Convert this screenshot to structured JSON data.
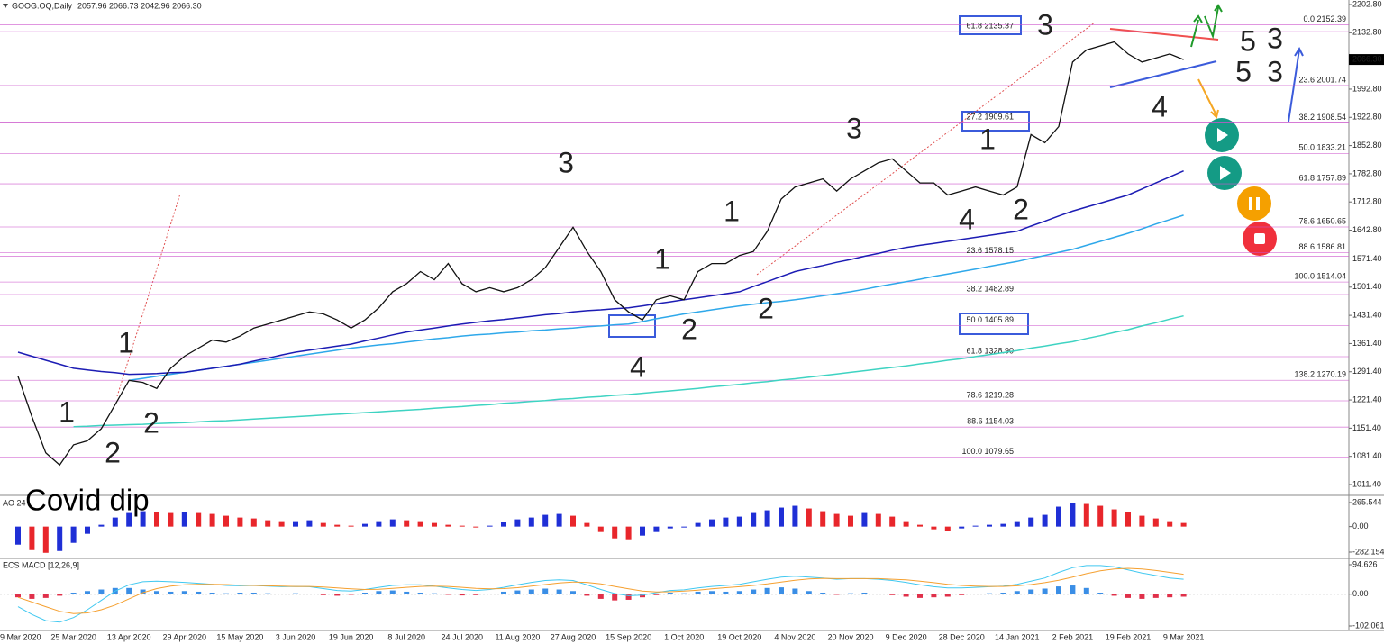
{
  "chart_data": [
    {
      "type": "line",
      "title": "GOOG.OQ,Daily",
      "ohlc": "2057.96 2066.73 2042.96 2066.30",
      "annotation": "Covid dip",
      "categories": [
        "9 Mar 2020",
        null,
        null,
        null,
        "25 Mar 2020",
        null,
        null,
        null,
        "13 Apr 2020",
        null,
        null,
        null,
        "29 Apr 2020",
        null,
        null,
        null,
        "15 May 2020",
        null,
        null,
        null,
        "3 Jun 2020",
        null,
        null,
        null,
        "19 Jun 2020",
        null,
        null,
        null,
        "8 Jul 2020",
        null,
        null,
        null,
        "24 Jul 2020",
        null,
        null,
        null,
        "11 Aug 2020",
        null,
        null,
        null,
        "27 Aug 2020",
        null,
        null,
        null,
        "15 Sep 2020",
        null,
        null,
        null,
        "1 Oct 2020",
        null,
        null,
        null,
        "19 Oct 2020",
        null,
        null,
        null,
        "4 Nov 2020",
        null,
        null,
        null,
        "20 Nov 2020",
        null,
        null,
        null,
        "9 Dec 2020",
        null,
        null,
        null,
        "28 Dec 2020",
        null,
        null,
        null,
        "14 Jan 2021",
        null,
        null,
        null,
        "2 Feb 2021",
        null,
        null,
        null,
        "19 Feb 2021",
        null,
        null,
        null,
        "9 Mar 2021"
      ],
      "series": [
        {
          "color": "#111111",
          "values": [
            1280,
            1180,
            1090,
            1060,
            1110,
            1120,
            1150,
            1210,
            1270,
            1265,
            1250,
            1300,
            1330,
            1350,
            1370,
            1365,
            1380,
            1400,
            1410,
            1420,
            1430,
            1440,
            1435,
            1420,
            1400,
            1420,
            1450,
            1490,
            1510,
            1540,
            1520,
            1560,
            1510,
            1490,
            1500,
            1490,
            1500,
            1520,
            1550,
            1600,
            1650,
            1590,
            1540,
            1470,
            1440,
            1420,
            1470,
            1480,
            1470,
            1540,
            1560,
            1560,
            1580,
            1590,
            1640,
            1720,
            1750,
            1760,
            1770,
            1740,
            1770,
            1790,
            1810,
            1820,
            1790,
            1760,
            1760,
            1730,
            1740,
            1750,
            1740,
            1730,
            1750,
            1880,
            1860,
            1900,
            2060,
            2090,
            2100,
            2110,
            2080,
            2060,
            2070,
            2080,
            2066.3
          ]
        },
        {
          "color": "#1c1cb4",
          "values": [
            1340,
            1330,
            1320,
            1310,
            1300,
            1296,
            1292,
            1289,
            1285,
            1286,
            1287,
            1289,
            1290,
            1295,
            1300,
            1305,
            1310,
            1318,
            1325,
            1333,
            1340,
            1345,
            1350,
            1355,
            1360,
            1368,
            1375,
            1383,
            1390,
            1395,
            1400,
            1405,
            1410,
            1414,
            1418,
            1421,
            1425,
            1429,
            1433,
            1436,
            1440,
            1443,
            1445,
            1448,
            1450,
            1455,
            1460,
            1465,
            1470,
            1475,
            1480,
            1485,
            1490,
            1503,
            1515,
            1528,
            1540,
            1548,
            1555,
            1563,
            1570,
            1578,
            1585,
            1593,
            1600,
            1605,
            1610,
            1615,
            1620,
            1625,
            1630,
            1635,
            1640,
            1653,
            1665,
            1678,
            1690,
            1700,
            1710,
            1720,
            1730,
            1745,
            1760,
            1775,
            1790
          ]
        },
        {
          "color": "#2ea8ea",
          "values": [
            null,
            null,
            null,
            null,
            null,
            null,
            null,
            null,
            1270,
            1275,
            1280,
            1285,
            1290,
            1295,
            1300,
            1305,
            1310,
            1315,
            1320,
            1325,
            1330,
            1335,
            1340,
            1345,
            1350,
            1354,
            1358,
            1361,
            1365,
            1369,
            1373,
            1376,
            1380,
            1383,
            1385,
            1388,
            1390,
            1393,
            1395,
            1398,
            1400,
            1403,
            1405,
            1408,
            1410,
            1416,
            1423,
            1429,
            1435,
            1440,
            1445,
            1450,
            1455,
            1459,
            1463,
            1466,
            1470,
            1475,
            1480,
            1485,
            1490,
            1496,
            1503,
            1509,
            1515,
            1521,
            1528,
            1534,
            1540,
            1546,
            1553,
            1559,
            1565,
            1573,
            1580,
            1588,
            1595,
            1605,
            1615,
            1625,
            1635,
            1646,
            1658,
            1669,
            1680
          ]
        },
        {
          "color": "#3ed3c2",
          "values": [
            null,
            null,
            null,
            null,
            1155,
            1156,
            1158,
            1159,
            1160,
            1161,
            1163,
            1164,
            1165,
            1167,
            1169,
            1170,
            1172,
            1174,
            1176,
            1178,
            1180,
            1182,
            1184,
            1186,
            1188,
            1190,
            1192,
            1194,
            1196,
            1198,
            1201,
            1203,
            1205,
            1208,
            1210,
            1213,
            1215,
            1218,
            1220,
            1223,
            1225,
            1228,
            1230,
            1233,
            1235,
            1238,
            1241,
            1244,
            1247,
            1250,
            1254,
            1257,
            1260,
            1264,
            1267,
            1271,
            1274,
            1278,
            1282,
            1286,
            1290,
            1294,
            1298,
            1302,
            1306,
            1311,
            1315,
            1320,
            1324,
            1329,
            1334,
            1339,
            1344,
            1350,
            1355,
            1361,
            1366,
            1374,
            1381,
            1389,
            1396,
            1405,
            1413,
            1422,
            1430
          ]
        }
      ],
      "ylim": [
        984.6,
        2214.0
      ],
      "yticks": [
        {
          "value": 2202.8,
          "label": "2202.80"
        },
        {
          "value": 2132.8,
          "label": "2132.80"
        },
        {
          "value": 1992.8,
          "label": "1992.80"
        },
        {
          "value": 1922.8,
          "label": "1922.80"
        },
        {
          "value": 1852.8,
          "label": "1852.80"
        },
        {
          "value": 1782.8,
          "label": "1782.80"
        },
        {
          "value": 1712.8,
          "label": "1712.80"
        },
        {
          "value": 1642.8,
          "label": "1642.80"
        },
        {
          "value": 1571.4,
          "label": "1571.40"
        },
        {
          "value": 1501.4,
          "label": "1501.40"
        },
        {
          "value": 1431.4,
          "label": "1431.40"
        },
        {
          "value": 1361.4,
          "label": "1361.40"
        },
        {
          "value": 1291.4,
          "label": "1291.40"
        },
        {
          "value": 1221.4,
          "label": "1221.40"
        },
        {
          "value": 1151.4,
          "label": "1151.40"
        },
        {
          "value": 1081.4,
          "label": "1081.40"
        },
        {
          "value": 1011.4,
          "label": "1011.40"
        }
      ],
      "last_price": {
        "value": 2066.3,
        "label": "2066.30"
      },
      "fib_sets": [
        [
          {
            "value": 2152.39,
            "label": "0.0 2152.39"
          },
          {
            "value": 2001.74,
            "label": "23.6 2001.74"
          },
          {
            "value": 1908.54,
            "label": "38.2 1908.54"
          },
          {
            "value": 1833.21,
            "label": "50.0 1833.21"
          },
          {
            "value": 1757.89,
            "label": "61.8 1757.89"
          },
          {
            "value": 1650.65,
            "label": "78.6 1650.65"
          },
          {
            "value": 1586.81,
            "label": "88.6 1586.81"
          },
          {
            "value": 1514.04,
            "label": "100.0 1514.04"
          },
          {
            "value": 1270.19,
            "label": "138.2 1270.19"
          }
        ],
        [
          {
            "value": 2135.37,
            "label": "61.8 2135.37"
          },
          {
            "value": 1909.61,
            "label": "27.2 1909.61"
          },
          {
            "value": 1578.15,
            "label": "23.6 1578.15"
          },
          {
            "value": 1482.89,
            "label": "38.2 1482.89"
          },
          {
            "value": 1405.89,
            "label": "50.0 1405.89"
          },
          {
            "value": 1328.9,
            "label": "61.8 1328.90"
          },
          {
            "value": 1219.28,
            "label": "78.6 1219.28"
          },
          {
            "value": 1154.03,
            "label": "88.6 1154.03"
          },
          {
            "value": 1079.65,
            "label": "100.0 1079.65"
          }
        ]
      ],
      "fib_color": "#cc55cc",
      "wave_labels": [
        {
          "text": "1",
          "color": "#f2564e"
        },
        {
          "text": "2",
          "color": "#f2564e"
        },
        {
          "text": "1",
          "color": "#5c2d86"
        },
        {
          "text": "2",
          "color": "#5c2d86"
        },
        {
          "text": "3",
          "color": "#5c2d86"
        },
        {
          "text": "4",
          "color": "#5c2d86"
        },
        {
          "text": "1",
          "color": "#f03fb0"
        },
        {
          "text": "2",
          "color": "#f03fb0"
        },
        {
          "text": "1",
          "color": "#b8b8b8"
        },
        {
          "text": "2",
          "color": "#b8b8b8"
        },
        {
          "text": "3",
          "color": "#b8b8b8"
        },
        {
          "text": "4",
          "color": "#b8b8b8"
        },
        {
          "text": "1",
          "color": "#f5a623"
        },
        {
          "text": "2",
          "color": "#f5a623"
        },
        {
          "text": "3",
          "color": "#f5a623"
        },
        {
          "text": "4",
          "color": "#f5a623"
        },
        {
          "text": "5",
          "color": "#5c2d86"
        },
        {
          "text": "3",
          "color": "#f2564e"
        },
        {
          "text": "5",
          "color": "#b8b8b8"
        },
        {
          "text": "3",
          "color": "#f03fb0"
        }
      ]
    },
    {
      "type": "bar",
      "title": "AO 24",
      "up_color": "#1f2fd6",
      "down_color": "#e8262b",
      "values": [
        -200,
        -260,
        -290,
        -270,
        -180,
        -80,
        20,
        100,
        150,
        170,
        160,
        150,
        160,
        150,
        140,
        120,
        100,
        90,
        70,
        60,
        60,
        70,
        40,
        20,
        10,
        30,
        60,
        80,
        70,
        60,
        40,
        20,
        10,
        -10,
        10,
        50,
        80,
        100,
        130,
        140,
        120,
        40,
        -60,
        -130,
        -140,
        -100,
        -60,
        -20,
        -10,
        40,
        80,
        100,
        110,
        150,
        180,
        210,
        230,
        200,
        170,
        140,
        120,
        150,
        140,
        110,
        60,
        20,
        -30,
        -50,
        -20,
        10,
        20,
        30,
        60,
        100,
        130,
        220,
        260,
        250,
        230,
        190,
        160,
        120,
        90,
        60,
        40
      ],
      "ylim": [
        -352,
        325
      ],
      "yticks": [
        265.544,
        {
          "value": 0,
          "label": "0.00"
        },
        -282.154
      ]
    },
    {
      "type": "macd",
      "title": "ECS MACD [12,26,9]",
      "pos_color": "#3a8ee6",
      "neg_color": "#e0304a",
      "values": [
        -10,
        -15,
        -12,
        -5,
        5,
        10,
        15,
        20,
        20,
        15,
        10,
        8,
        10,
        8,
        5,
        3,
        5,
        5,
        3,
        2,
        3,
        2,
        -3,
        -5,
        -2,
        5,
        10,
        12,
        8,
        5,
        3,
        -2,
        -4,
        -3,
        2,
        8,
        12,
        15,
        18,
        15,
        10,
        -5,
        -15,
        -20,
        -18,
        -10,
        -3,
        5,
        3,
        8,
        10,
        8,
        10,
        15,
        20,
        22,
        18,
        10,
        5,
        -2,
        3,
        5,
        2,
        -3,
        -8,
        -12,
        -10,
        -8,
        -3,
        2,
        3,
        5,
        10,
        15,
        18,
        25,
        28,
        20,
        5,
        -5,
        -12,
        -15,
        -12,
        -10,
        -8
      ],
      "series": [
        {
          "color": "#40c8f0",
          "values": [
            -40,
            -65,
            -85,
            -90,
            -75,
            -50,
            -20,
            10,
            30,
            40,
            42,
            40,
            38,
            35,
            32,
            28,
            27,
            28,
            26,
            24,
            25,
            24,
            18,
            12,
            10,
            15,
            22,
            28,
            30,
            30,
            26,
            20,
            15,
            12,
            15,
            22,
            30,
            38,
            44,
            46,
            44,
            30,
            15,
            2,
            -5,
            -3,
            5,
            12,
            14,
            20,
            25,
            28,
            32,
            40,
            48,
            55,
            58,
            55,
            52,
            48,
            50,
            50,
            48,
            44,
            38,
            30,
            24,
            20,
            20,
            22,
            24,
            26,
            32,
            42,
            52,
            70,
            85,
            92,
            92,
            88,
            78,
            68,
            60,
            52,
            48
          ]
        },
        {
          "color": "#f5a030",
          "values": [
            -10,
            -25,
            -40,
            -55,
            -62,
            -60,
            -50,
            -35,
            -15,
            5,
            18,
            26,
            30,
            32,
            32,
            31,
            29,
            28,
            27,
            26,
            25,
            25,
            23,
            20,
            17,
            15,
            16,
            19,
            22,
            25,
            26,
            25,
            22,
            19,
            17,
            18,
            21,
            26,
            31,
            36,
            39,
            38,
            33,
            25,
            17,
            10,
            7,
            8,
            10,
            13,
            17,
            21,
            24,
            28,
            33,
            39,
            45,
            49,
            51,
            50,
            50,
            50,
            50,
            48,
            46,
            42,
            37,
            32,
            28,
            26,
            25,
            25,
            27,
            31,
            37,
            45,
            55,
            66,
            75,
            81,
            83,
            81,
            76,
            70,
            64
          ]
        }
      ],
      "ylim": [
        -116.5,
        109.1
      ],
      "yticks": [
        94.626,
        {
          "value": 0,
          "label": "0.00"
        },
        -102.061
      ]
    }
  ]
}
